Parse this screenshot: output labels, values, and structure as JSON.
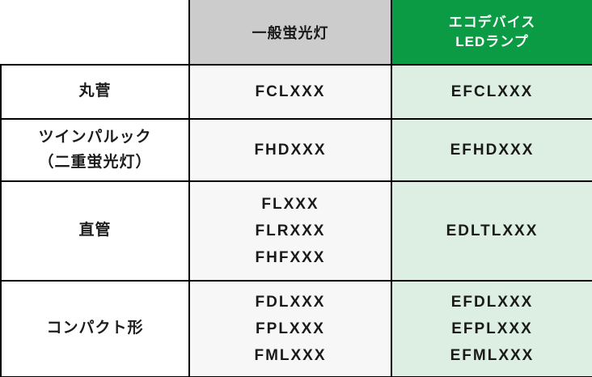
{
  "colors": {
    "led_header_green": "#0a9b44",
    "fluorescent_header_gray": "#cccccc",
    "led_cell_light_green": "#ddeee2",
    "fluorescent_cell_offwhite": "#f7f7f7",
    "border_black": "#000000",
    "text_dark": "#1a1a1a",
    "led_header_text": "#ffffff"
  },
  "table": {
    "header": {
      "corner": "",
      "fluorescent": "一般蛍光灯",
      "led_lines": [
        "エコデバイス",
        "LEDランプ"
      ]
    },
    "rows": [
      {
        "label_lines": [
          "丸菅"
        ],
        "fluorescent": [
          "FCLXXX"
        ],
        "led": [
          "EFCLXXX"
        ]
      },
      {
        "label_lines": [
          "ツインパルック",
          "（二重蛍光灯）"
        ],
        "fluorescent": [
          "FHDXXX"
        ],
        "led": [
          "EFHDXXX"
        ]
      },
      {
        "label_lines": [
          "直管"
        ],
        "fluorescent": [
          "FLXXX",
          "FLRXXX",
          "FHFXXX"
        ],
        "led": [
          "EDLTLXXX"
        ]
      },
      {
        "label_lines": [
          "コンパクト形"
        ],
        "fluorescent": [
          "FDLXXX",
          "FPLXXX",
          "FMLXXX"
        ],
        "led": [
          "EFDLXXX",
          "EFPLXXX",
          "EFMLXXX"
        ]
      }
    ]
  },
  "chart_data": {
    "type": "table",
    "title": "",
    "columns": [
      "",
      "一般蛍光灯",
      "エコデバイス LEDランプ"
    ],
    "rows": [
      [
        [
          "丸菅"
        ],
        [
          "FCLXXX"
        ],
        [
          "EFCLXXX"
        ]
      ],
      [
        [
          "ツインパルック",
          "（二重蛍光灯）"
        ],
        [
          "FHDXXX"
        ],
        [
          "EFHDXXX"
        ]
      ],
      [
        [
          "直管"
        ],
        [
          "FLXXX",
          "FLRXXX",
          "FHFXXX"
        ],
        [
          "EDLTLXXX"
        ]
      ],
      [
        [
          "コンパクト形"
        ],
        [
          "FDLXXX",
          "FPLXXX",
          "FMLXXX"
        ],
        [
          "EFDLXXX",
          "EFPLXXX",
          "EFMLXXX"
        ]
      ]
    ],
    "layout_hints": {
      "header_row_colored": true,
      "column2_header_bg": "#cccccc",
      "column3_header_bg": "#0a9b44",
      "column3_body_bg": "#ddeee2",
      "grid": true
    }
  }
}
